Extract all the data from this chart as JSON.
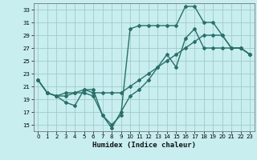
{
  "xlabel": "Humidex (Indice chaleur)",
  "bg_color": "#c8eef0",
  "grid_color": "#a0ccc8",
  "line_color": "#2a7068",
  "marker": "D",
  "marker_size": 2.0,
  "line_width": 1.0,
  "xlim": [
    -0.5,
    23.5
  ],
  "ylim": [
    14,
    34
  ],
  "xticks": [
    0,
    1,
    2,
    3,
    4,
    5,
    6,
    7,
    8,
    9,
    10,
    11,
    12,
    13,
    14,
    15,
    16,
    17,
    18,
    19,
    20,
    21,
    22,
    23
  ],
  "yticks": [
    15,
    17,
    19,
    21,
    23,
    25,
    27,
    29,
    31,
    33
  ],
  "series": [
    [
      [
        0,
        22
      ],
      [
        1,
        20
      ],
      [
        2,
        19.5
      ],
      [
        3,
        18.5
      ],
      [
        4,
        18
      ],
      [
        5,
        20.5
      ],
      [
        6,
        20.5
      ],
      [
        7,
        16.5
      ],
      [
        8,
        14.5
      ],
      [
        9,
        17
      ],
      [
        10,
        19.5
      ],
      [
        11,
        20.5
      ],
      [
        12,
        22
      ],
      [
        13,
        24
      ],
      [
        14,
        26
      ],
      [
        15,
        24
      ],
      [
        16,
        28.5
      ],
      [
        17,
        30
      ],
      [
        18,
        27
      ],
      [
        19,
        27
      ],
      [
        20,
        27
      ],
      [
        21,
        27
      ],
      [
        22,
        27
      ],
      [
        23,
        26
      ]
    ],
    [
      [
        0,
        22
      ],
      [
        1,
        20
      ],
      [
        2,
        19.5
      ],
      [
        3,
        19.5
      ],
      [
        4,
        20
      ],
      [
        5,
        20
      ],
      [
        6,
        19.5
      ],
      [
        7,
        16.5
      ],
      [
        8,
        15
      ],
      [
        9,
        16.5
      ],
      [
        10,
        30
      ],
      [
        11,
        30.5
      ],
      [
        12,
        30.5
      ],
      [
        13,
        30.5
      ],
      [
        14,
        30.5
      ],
      [
        15,
        30.5
      ],
      [
        16,
        33.5
      ],
      [
        17,
        33.5
      ],
      [
        18,
        31
      ],
      [
        19,
        31
      ],
      [
        20,
        29
      ],
      [
        21,
        27
      ],
      [
        22,
        27
      ],
      [
        23,
        26
      ]
    ],
    [
      [
        0,
        22
      ],
      [
        1,
        20
      ],
      [
        2,
        19.5
      ],
      [
        3,
        20
      ],
      [
        4,
        20
      ],
      [
        5,
        20.5
      ],
      [
        6,
        20
      ],
      [
        7,
        20
      ],
      [
        8,
        20
      ],
      [
        9,
        20
      ],
      [
        10,
        21
      ],
      [
        11,
        22
      ],
      [
        12,
        23
      ],
      [
        13,
        24
      ],
      [
        14,
        25
      ],
      [
        15,
        26
      ],
      [
        16,
        27
      ],
      [
        17,
        28
      ],
      [
        18,
        29
      ],
      [
        19,
        29
      ],
      [
        20,
        29
      ],
      [
        21,
        27
      ],
      [
        22,
        27
      ],
      [
        23,
        26
      ]
    ]
  ]
}
